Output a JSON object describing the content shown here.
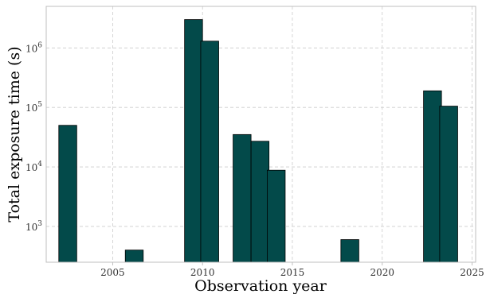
{
  "chart_data": {
    "type": "bar",
    "title": "",
    "xlabel": "Observation year",
    "ylabel": "Total exposure time (s)",
    "y_scale": "log",
    "ylim": [
      250,
      5000000
    ],
    "xlim": [
      2001.3,
      2025.2
    ],
    "grid": true,
    "bar_color": "#034a4a",
    "x_ticks": [
      {
        "value": 2005,
        "label": "2005"
      },
      {
        "value": 2010,
        "label": "2010"
      },
      {
        "value": 2015,
        "label": "2015"
      },
      {
        "value": 2020,
        "label": "2020"
      },
      {
        "value": 2025,
        "label": "2025"
      }
    ],
    "y_ticks": [
      {
        "value": 1000,
        "base": "10",
        "exp": "3"
      },
      {
        "value": 10000,
        "base": "10",
        "exp": "4"
      },
      {
        "value": 100000,
        "base": "10",
        "exp": "5"
      },
      {
        "value": 1000000,
        "base": "10",
        "exp": "6"
      }
    ],
    "bars": [
      {
        "x": 2002.5,
        "value": 50000
      },
      {
        "x": 2006.2,
        "value": 400
      },
      {
        "x": 2009.5,
        "value": 3000000
      },
      {
        "x": 2010.4,
        "value": 1300000
      },
      {
        "x": 2012.2,
        "value": 35000
      },
      {
        "x": 2013.2,
        "value": 27000
      },
      {
        "x": 2014.1,
        "value": 8800
      },
      {
        "x": 2018.2,
        "value": 600
      },
      {
        "x": 2022.8,
        "value": 190000
      },
      {
        "x": 2023.7,
        "value": 105000
      }
    ]
  }
}
